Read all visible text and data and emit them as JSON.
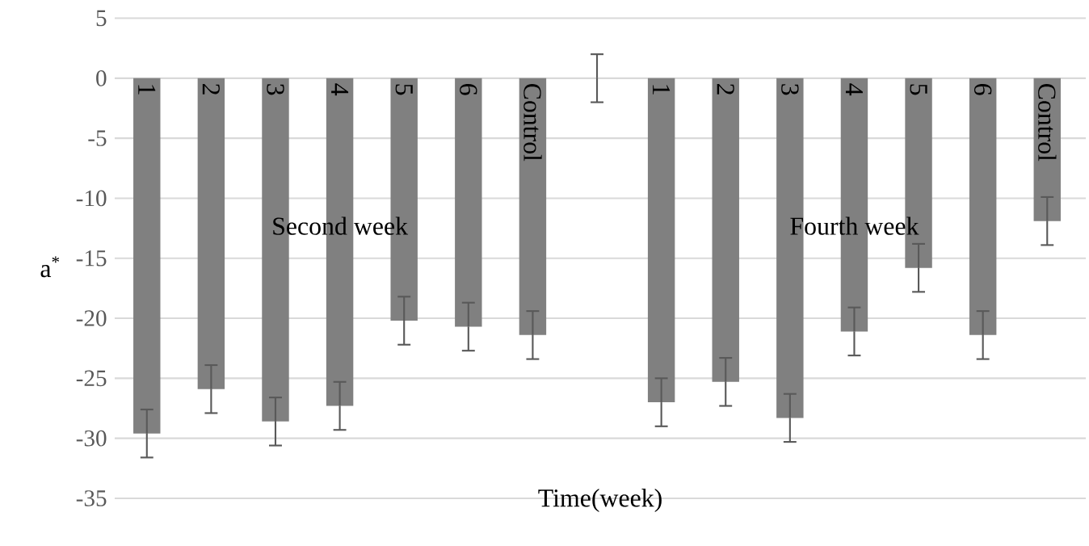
{
  "chart_data": {
    "type": "bar",
    "xlabel": "Time(week)",
    "ylabel": "a$^{*}$",
    "categories": [
      "1",
      "2",
      "3",
      "4",
      "5",
      "6",
      "Control",
      null,
      "1",
      "2",
      "3",
      "4",
      "5",
      "6",
      "Control"
    ],
    "values": [
      -29.6,
      -25.9,
      -28.6,
      -27.3,
      -20.2,
      -20.7,
      -21.4,
      0,
      -27.0,
      -25.3,
      -28.3,
      -21.1,
      -15.8,
      -21.4,
      -11.9
    ],
    "errors": [
      2,
      2,
      2,
      2,
      2,
      2,
      2,
      2,
      2,
      2,
      2,
      2,
      2,
      2,
      2
    ],
    "color": "#808080",
    "ylim": [
      -35,
      5
    ],
    "yticks": [
      -35,
      -30,
      -25,
      -20,
      -15,
      -10,
      -5,
      0,
      5
    ],
    "grid": "y",
    "tick_labels": "y",
    "annotations": [
      "Second week",
      "Fourth week"
    ]
  }
}
